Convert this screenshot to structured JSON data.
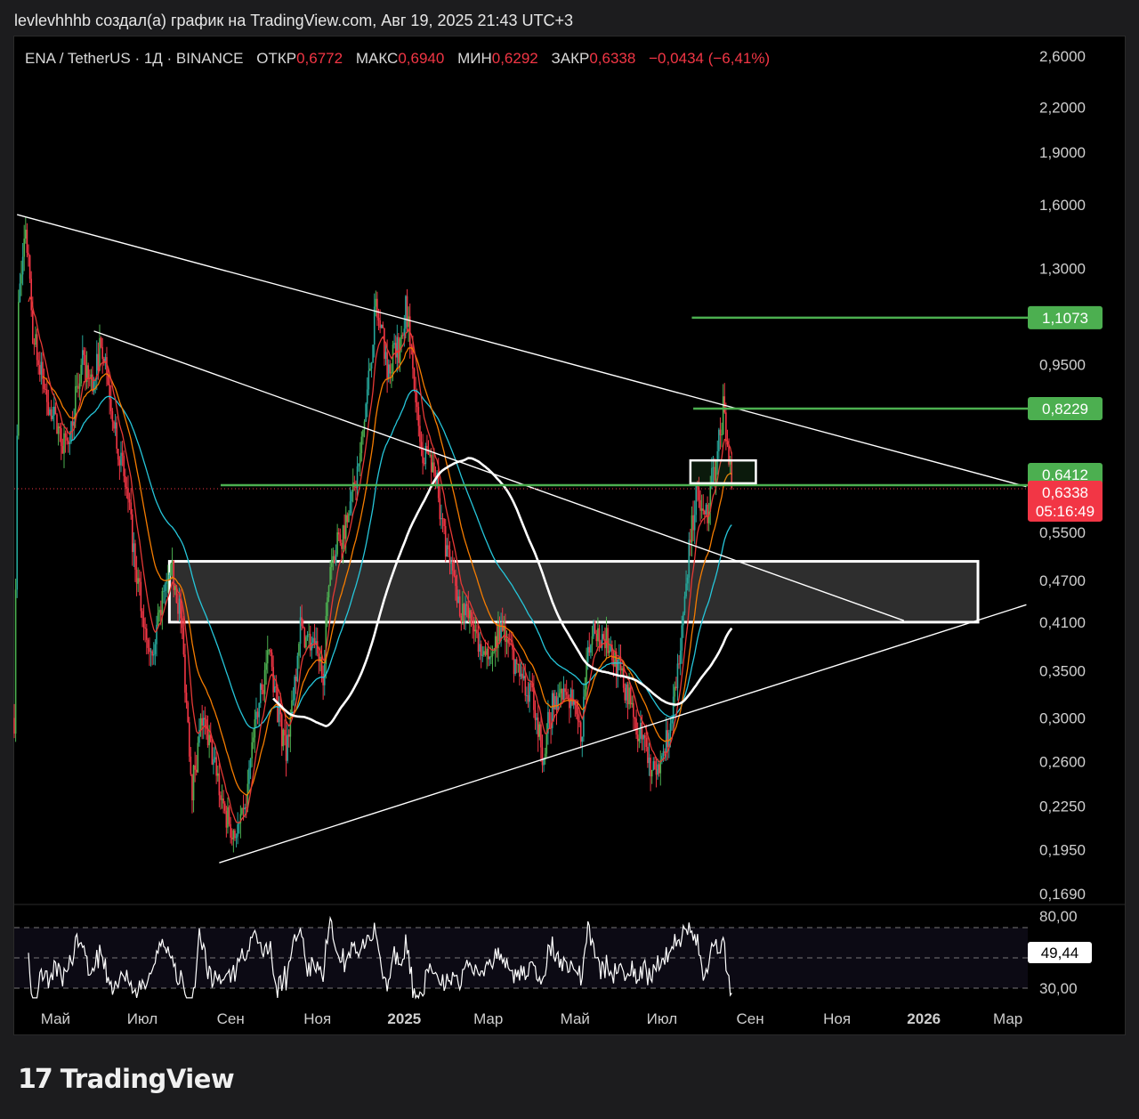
{
  "header": {
    "text": "levlevhhhb создал(а) график на TradingView.com, Авг 19, 2025 21:43 UTC+3"
  },
  "legend": {
    "symbol": "ENA / TetherUS · 1Д · BINANCE",
    "open_label": "ОТКР",
    "open": "0,6772",
    "high_label": "МАКС",
    "high": "0,6940",
    "low_label": "МИН",
    "low": "0,6292",
    "close_label": "ЗАКР",
    "close": "0,6338",
    "change": "−0,0434 (−6,41%)"
  },
  "price_axis": {
    "ticks": [
      "2,6000",
      "2,2000",
      "1,9000",
      "1,6000",
      "1,3000",
      "0,9500",
      "0,5500",
      "0,4700",
      "0,4100",
      "0,3500",
      "0,3000",
      "0,2600",
      "0,2250",
      "0,1950",
      "0,1690"
    ],
    "badges": [
      {
        "label": "1,1073",
        "color": "#4caf50"
      },
      {
        "label": "0,8229",
        "color": "#4caf50"
      },
      {
        "label": "0,6412",
        "color": "#4caf50"
      },
      {
        "label": "0,6338",
        "sub": "05:16:49",
        "color": "#f23645"
      }
    ]
  },
  "rsi": {
    "ticks": [
      "80,00",
      "30,00"
    ],
    "value": "49,44"
  },
  "time_axis": [
    "Май",
    "Июл",
    "Сен",
    "Ноя",
    "2025",
    "Мар",
    "Май",
    "Июл",
    "Сен",
    "Ноя",
    "2026",
    "Мар"
  ],
  "colors": {
    "up": "#26a69a",
    "up_bright": "#4caf50",
    "down": "#f23645",
    "ema_fast": "#e53935",
    "ema_mid": "#f57c00",
    "ema_slow": "#26c6da",
    "ma": "#ffffff"
  },
  "branding": {
    "name": "TradingView"
  },
  "chart_data": {
    "type": "candlestick",
    "symbol": "ENA / TetherUS",
    "interval": "1Д",
    "y_scale": "log",
    "ylim": [
      0.169,
      2.6
    ],
    "xlim": [
      "2024-04-02",
      "2026-03-15"
    ],
    "ohlc_last": {
      "open": 0.6772,
      "high": 0.694,
      "low": 0.6292,
      "close": 0.6338
    },
    "price_path": [
      [
        "2024-04-02",
        0.3
      ],
      [
        "2024-04-05",
        1.15
      ],
      [
        "2024-04-10",
        1.5
      ],
      [
        "2024-04-15",
        1.05
      ],
      [
        "2024-04-25",
        0.85
      ],
      [
        "2024-05-08",
        0.72
      ],
      [
        "2024-05-20",
        0.95
      ],
      [
        "2024-05-28",
        0.88
      ],
      [
        "2024-06-02",
        1.05
      ],
      [
        "2024-06-10",
        0.82
      ],
      [
        "2024-06-20",
        0.62
      ],
      [
        "2024-07-01",
        0.42
      ],
      [
        "2024-07-08",
        0.38
      ],
      [
        "2024-07-15",
        0.44
      ],
      [
        "2024-07-22",
        0.48
      ],
      [
        "2024-07-28",
        0.42
      ],
      [
        "2024-08-05",
        0.24
      ],
      [
        "2024-08-12",
        0.3
      ],
      [
        "2024-08-20",
        0.26
      ],
      [
        "2024-08-28",
        0.22
      ],
      [
        "2024-09-05",
        0.205
      ],
      [
        "2024-09-10",
        0.215
      ],
      [
        "2024-09-20",
        0.31
      ],
      [
        "2024-09-28",
        0.37
      ],
      [
        "2024-10-05",
        0.3
      ],
      [
        "2024-10-10",
        0.27
      ],
      [
        "2024-10-20",
        0.4
      ],
      [
        "2024-10-28",
        0.38
      ],
      [
        "2024-11-05",
        0.35
      ],
      [
        "2024-11-10",
        0.5
      ],
      [
        "2024-11-20",
        0.56
      ],
      [
        "2024-12-01",
        0.7
      ],
      [
        "2024-12-08",
        0.95
      ],
      [
        "2024-12-12",
        1.15
      ],
      [
        "2024-12-20",
        0.95
      ],
      [
        "2024-12-28",
        1.0
      ],
      [
        "2025-01-02",
        1.15
      ],
      [
        "2025-01-05",
        1.05
      ],
      [
        "2025-01-12",
        0.72
      ],
      [
        "2025-01-22",
        0.68
      ],
      [
        "2025-02-01",
        0.5
      ],
      [
        "2025-02-10",
        0.43
      ],
      [
        "2025-02-20",
        0.4
      ],
      [
        "2025-03-01",
        0.36
      ],
      [
        "2025-03-10",
        0.4
      ],
      [
        "2025-03-20",
        0.36
      ],
      [
        "2025-04-01",
        0.32
      ],
      [
        "2025-04-08",
        0.27
      ],
      [
        "2025-04-15",
        0.31
      ],
      [
        "2025-04-25",
        0.33
      ],
      [
        "2025-05-05",
        0.28
      ],
      [
        "2025-05-12",
        0.4
      ],
      [
        "2025-05-22",
        0.39
      ],
      [
        "2025-06-01",
        0.35
      ],
      [
        "2025-06-10",
        0.31
      ],
      [
        "2025-06-22",
        0.26
      ],
      [
        "2025-06-28",
        0.25
      ],
      [
        "2025-07-05",
        0.28
      ],
      [
        "2025-07-12",
        0.35
      ],
      [
        "2025-07-20",
        0.52
      ],
      [
        "2025-07-25",
        0.62
      ],
      [
        "2025-08-01",
        0.58
      ],
      [
        "2025-08-08",
        0.7
      ],
      [
        "2025-08-13",
        0.82
      ],
      [
        "2025-08-19",
        0.6338
      ]
    ],
    "horizontal_levels": [
      1.1073,
      0.8229,
      0.6412
    ],
    "zone": {
      "from": "2024-07-20",
      "to": "2026-02-08",
      "low": 0.41,
      "high": 0.5
    },
    "rsi": {
      "value": 49.44,
      "upper": 80,
      "lower": 30
    }
  }
}
